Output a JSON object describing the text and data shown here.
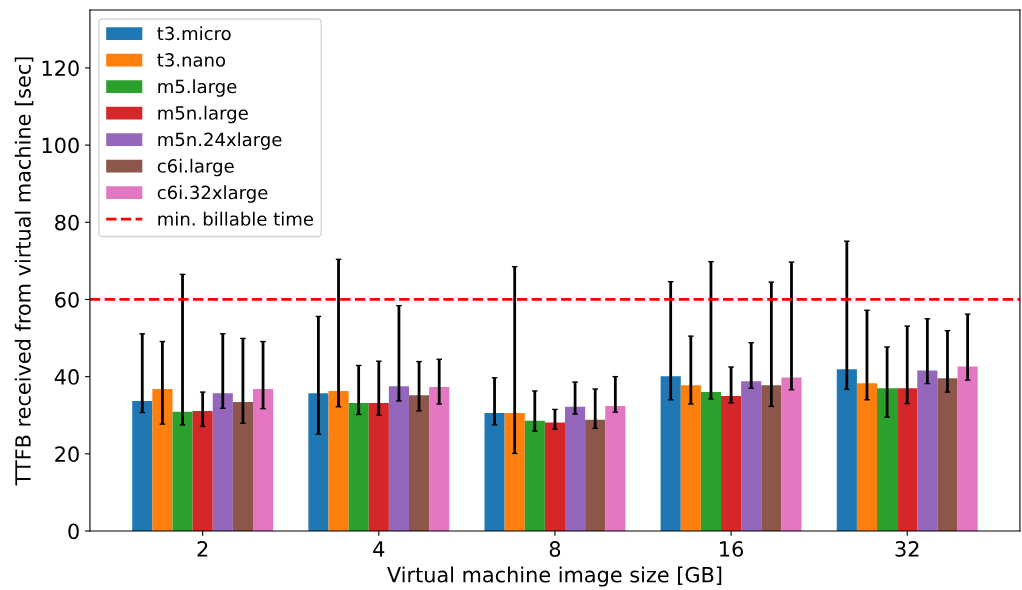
{
  "chart_data": {
    "type": "bar",
    "xlabel": "Virtual machine image size [GB]",
    "ylabel": "TTFB received from virtual machine [sec]",
    "categories": [
      "2",
      "4",
      "8",
      "16",
      "32"
    ],
    "ylim": [
      0,
      135
    ],
    "yticks": [
      0,
      20,
      40,
      60,
      80,
      100,
      120
    ],
    "grid": false,
    "legend": "top left",
    "series": [
      {
        "name": "t3.micro",
        "color": "#1f77b4",
        "values": [
          33.7,
          35.7,
          30.6,
          40.1,
          41.9
        ],
        "errors": [
          [
            30.7,
            51.1
          ],
          [
            25.1,
            55.6
          ],
          [
            27.5,
            39.7
          ],
          [
            34.0,
            64.6
          ],
          [
            36.7,
            75.1
          ]
        ]
      },
      {
        "name": "t3.nano",
        "color": "#ff7f0e",
        "values": [
          36.8,
          36.3,
          30.6,
          37.8,
          38.3
        ],
        "errors": [
          [
            27.7,
            49.1
          ],
          [
            32.2,
            70.4
          ],
          [
            20.1,
            68.5
          ],
          [
            32.9,
            50.5
          ],
          [
            34.0,
            57.2
          ]
        ]
      },
      {
        "name": "m5.large",
        "color": "#2ca02c",
        "values": [
          30.9,
          33.2,
          28.6,
          36.0,
          37.0
        ],
        "errors": [
          [
            27.5,
            66.5
          ],
          [
            30.2,
            42.9
          ],
          [
            25.9,
            36.3
          ],
          [
            34.2,
            69.8
          ],
          [
            29.5,
            47.7
          ]
        ]
      },
      {
        "name": "m5n.large",
        "color": "#d62728",
        "values": [
          31.1,
          33.2,
          28.1,
          35.0,
          37.0
        ],
        "errors": [
          [
            27.1,
            36.0
          ],
          [
            30.0,
            44.0
          ],
          [
            26.4,
            31.5
          ],
          [
            33.2,
            42.5
          ],
          [
            33.0,
            53.1
          ]
        ]
      },
      {
        "name": "m5n.24xlarge",
        "color": "#9467bd",
        "values": [
          35.7,
          37.5,
          32.2,
          38.8,
          41.6
        ],
        "errors": [
          [
            31.8,
            51.1
          ],
          [
            33.7,
            58.4
          ],
          [
            30.3,
            38.6
          ],
          [
            37.0,
            48.8
          ],
          [
            38.2,
            55.0
          ]
        ]
      },
      {
        "name": "c6i.large",
        "color": "#8c564b",
        "values": [
          33.4,
          35.2,
          28.8,
          37.8,
          39.6
        ],
        "errors": [
          [
            27.9,
            49.9
          ],
          [
            31.1,
            43.9
          ],
          [
            26.6,
            36.8
          ],
          [
            32.3,
            64.5
          ],
          [
            36.0,
            51.9
          ]
        ]
      },
      {
        "name": "c6i.32xlarge",
        "color": "#e377c2",
        "values": [
          36.8,
          37.3,
          32.4,
          39.8,
          42.6
        ],
        "errors": [
          [
            31.7,
            49.1
          ],
          [
            32.9,
            44.5
          ],
          [
            30.8,
            40.0
          ],
          [
            36.6,
            69.7
          ],
          [
            39.1,
            56.2
          ]
        ]
      }
    ],
    "ref_lines": [
      {
        "axis": "y",
        "value": 60,
        "label": "min. billable time",
        "color": "#ff0000",
        "line_style": "dashed"
      }
    ]
  }
}
